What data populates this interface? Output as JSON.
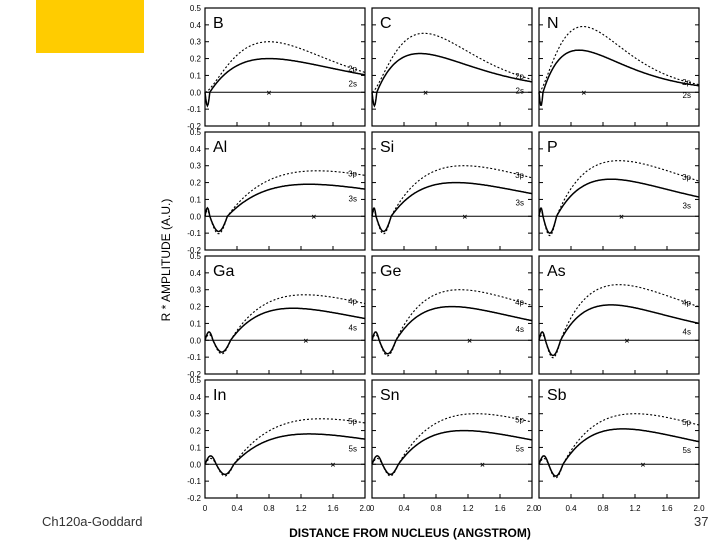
{
  "slide": {
    "footer_text": "Ch120a-Goddard",
    "page_number": "37",
    "accent_color": "#ffcc00"
  },
  "chart_data": {
    "type": "line",
    "layout": "grid 4x3",
    "xlabel": "DISTANCE FROM NUCLEUS (ANGSTROM)",
    "ylabel": "R * AMPLITUDE (A.U.)",
    "xlim": [
      0,
      2.0
    ],
    "ylim": [
      -0.2,
      0.5
    ],
    "xticks": [
      "0",
      "0.4",
      "0.8",
      "1.2",
      "1.6",
      "2.0"
    ],
    "yticks": [
      "0.5",
      "0.4",
      "0.3",
      "0.2",
      "0.1",
      "0.0",
      "-0.1",
      "-0.2"
    ],
    "grid": false,
    "series_styles": {
      "p": "dotted",
      "s": "solid"
    },
    "panels": [
      {
        "element": "B",
        "p_label": "2p",
        "s_label": "2s",
        "s_node_x": 0,
        "s_zero2": 0.06,
        "s_min": -0.08,
        "s_peak_x": 0.8,
        "s_peak": 0.2,
        "p_peak_x": 0.8,
        "p_peak": 0.3,
        "marker_x": 0.8
      },
      {
        "element": "C",
        "p_label": "2p",
        "s_label": "2s",
        "s_node_x": 0,
        "s_zero2": 0.06,
        "s_min": -0.08,
        "s_peak_x": 0.6,
        "s_peak": 0.23,
        "p_peak_x": 0.65,
        "p_peak": 0.35,
        "marker_x": 0.67
      },
      {
        "element": "N",
        "p_label": "2p",
        "s_label": "2s",
        "s_node_x": 0,
        "s_zero2": 0.05,
        "s_min": -0.08,
        "s_peak_x": 0.5,
        "s_peak": 0.25,
        "p_peak_x": 0.55,
        "p_peak": 0.39,
        "marker_x": 0.56
      },
      {
        "element": "Al",
        "p_label": "3p",
        "s_label": "3s",
        "s_node_x": 0.06,
        "s_zero2": 0.28,
        "s_min": -0.09,
        "s_peak_x": 1.3,
        "s_peak": 0.19,
        "p_peak_x": 1.4,
        "p_peak": 0.27,
        "marker_x": 1.36
      },
      {
        "element": "Si",
        "p_label": "3p",
        "s_label": "3s",
        "s_node_x": 0.05,
        "s_zero2": 0.24,
        "s_min": -0.09,
        "s_peak_x": 1.05,
        "s_peak": 0.2,
        "p_peak_x": 1.15,
        "p_peak": 0.3,
        "marker_x": 1.16
      },
      {
        "element": "P",
        "p_label": "3p",
        "s_label": "3s",
        "s_node_x": 0.05,
        "s_zero2": 0.22,
        "s_min": -0.1,
        "s_peak_x": 0.9,
        "s_peak": 0.22,
        "p_peak_x": 1.0,
        "p_peak": 0.33,
        "marker_x": 1.03
      },
      {
        "element": "Ga",
        "p_label": "4p",
        "s_label": "4s",
        "s_node_x": 0.1,
        "s_zero2": 0.32,
        "s_min": -0.07,
        "s_peak_x": 1.1,
        "s_peak": 0.19,
        "p_peak_x": 1.25,
        "p_peak": 0.27,
        "marker_x": 1.26
      },
      {
        "element": "Ge",
        "p_label": "4p",
        "s_label": "4s",
        "s_node_x": 0.09,
        "s_zero2": 0.3,
        "s_min": -0.08,
        "s_peak_x": 1.0,
        "s_peak": 0.2,
        "p_peak_x": 1.1,
        "p_peak": 0.3,
        "marker_x": 1.22
      },
      {
        "element": "As",
        "p_label": "4p",
        "s_label": "4s",
        "s_node_x": 0.08,
        "s_zero2": 0.27,
        "s_min": -0.09,
        "s_peak_x": 0.9,
        "s_peak": 0.21,
        "p_peak_x": 1.0,
        "p_peak": 0.33,
        "marker_x": 1.1
      },
      {
        "element": "In",
        "p_label": "5p",
        "s_label": "5s",
        "s_node_x": 0.14,
        "s_zero2": 0.36,
        "s_min": -0.06,
        "s_peak_x": 1.3,
        "s_peak": 0.18,
        "p_peak_x": 1.45,
        "p_peak": 0.27,
        "marker_x": 1.6
      },
      {
        "element": "Sn",
        "p_label": "5p",
        "s_label": "5s",
        "s_node_x": 0.13,
        "s_zero2": 0.33,
        "s_min": -0.06,
        "s_peak_x": 1.15,
        "s_peak": 0.2,
        "p_peak_x": 1.3,
        "p_peak": 0.3,
        "marker_x": 1.38
      },
      {
        "element": "Sb",
        "p_label": "5p",
        "s_label": "5s",
        "s_node_x": 0.12,
        "s_zero2": 0.3,
        "s_min": -0.07,
        "s_peak_x": 1.05,
        "s_peak": 0.21,
        "p_peak_x": 1.2,
        "p_peak": 0.3,
        "marker_x": 1.3
      }
    ]
  }
}
